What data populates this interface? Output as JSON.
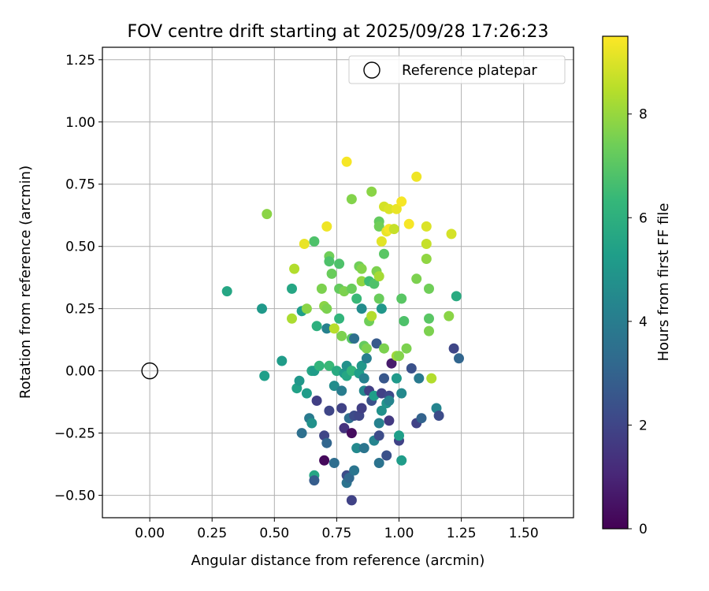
{
  "chart_data": {
    "type": "scatter",
    "title": "FOV centre drift starting at 2025/09/28 17:26:23",
    "xlabel": "Angular distance from reference (arcmin)",
    "ylabel": "Rotation from reference (arcmin)",
    "xlim": [
      -0.19,
      1.7
    ],
    "ylim": [
      -0.59,
      1.3
    ],
    "x_ticks": [
      0.0,
      0.25,
      0.5,
      0.75,
      1.0,
      1.25,
      1.5
    ],
    "x_tick_labels": [
      "0.00",
      "0.25",
      "0.50",
      "0.75",
      "1.00",
      "1.25",
      "1.50"
    ],
    "y_ticks": [
      -0.5,
      -0.25,
      0.0,
      0.25,
      0.5,
      0.75,
      1.0,
      1.25
    ],
    "y_tick_labels": [
      "−0.50",
      "−0.25",
      "0.00",
      "0.25",
      "0.50",
      "0.75",
      "1.00",
      "1.25"
    ],
    "grid": true,
    "legend": {
      "position": "top-right",
      "label": "Reference platepar"
    },
    "reference": {
      "x": 0.0,
      "y": 0.0
    },
    "colorbar": {
      "label": "Hours from first FF file",
      "min": 0,
      "max": 9.5,
      "ticks": [
        0,
        2,
        4,
        6,
        8
      ],
      "tick_labels": [
        "0",
        "2",
        "4",
        "6",
        "8"
      ],
      "colormap": [
        "#440154",
        "#482878",
        "#3e4989",
        "#31688e",
        "#26828e",
        "#1f9e89",
        "#35b779",
        "#6ece58",
        "#b5de2b",
        "#fde725"
      ]
    },
    "points": [
      {
        "x": 0.31,
        "y": 0.32,
        "h": 5.6
      },
      {
        "x": 0.45,
        "y": 0.25,
        "h": 5.1
      },
      {
        "x": 0.46,
        "y": -0.02,
        "h": 5.3
      },
      {
        "x": 0.47,
        "y": 0.63,
        "h": 7.8
      },
      {
        "x": 0.53,
        "y": 0.04,
        "h": 5.2
      },
      {
        "x": 0.57,
        "y": 0.21,
        "h": 8.3
      },
      {
        "x": 0.57,
        "y": 0.33,
        "h": 5.6
      },
      {
        "x": 0.58,
        "y": 0.41,
        "h": 8.4
      },
      {
        "x": 0.59,
        "y": -0.07,
        "h": 5.4
      },
      {
        "x": 0.6,
        "y": -0.04,
        "h": 5.0
      },
      {
        "x": 0.61,
        "y": 0.24,
        "h": 5.3
      },
      {
        "x": 0.61,
        "y": -0.25,
        "h": 3.5
      },
      {
        "x": 0.62,
        "y": 0.51,
        "h": 9.2
      },
      {
        "x": 0.63,
        "y": 0.25,
        "h": 7.8
      },
      {
        "x": 0.63,
        "y": -0.09,
        "h": 5.2
      },
      {
        "x": 0.64,
        "y": -0.19,
        "h": 3.9
      },
      {
        "x": 0.65,
        "y": -0.21,
        "h": 4.8
      },
      {
        "x": 0.65,
        "y": 0.0,
        "h": 5.6
      },
      {
        "x": 0.66,
        "y": 0.52,
        "h": 6.8
      },
      {
        "x": 0.66,
        "y": 0.0,
        "h": 5.2
      },
      {
        "x": 0.66,
        "y": -0.42,
        "h": 5.6
      },
      {
        "x": 0.66,
        "y": -0.44,
        "h": 2.8
      },
      {
        "x": 0.67,
        "y": -0.12,
        "h": 1.8
      },
      {
        "x": 0.67,
        "y": 0.18,
        "h": 6.0
      },
      {
        "x": 0.68,
        "y": 0.02,
        "h": 6.2
      },
      {
        "x": 0.69,
        "y": 0.33,
        "h": 7.6
      },
      {
        "x": 0.7,
        "y": 0.26,
        "h": 7.8
      },
      {
        "x": 0.7,
        "y": -0.26,
        "h": 2.0
      },
      {
        "x": 0.7,
        "y": -0.36,
        "h": 0.2
      },
      {
        "x": 0.71,
        "y": -0.29,
        "h": 3.1
      },
      {
        "x": 0.71,
        "y": 0.58,
        "h": 9.3
      },
      {
        "x": 0.71,
        "y": 0.17,
        "h": 4.2
      },
      {
        "x": 0.71,
        "y": 0.25,
        "h": 7.6
      },
      {
        "x": 0.72,
        "y": 0.46,
        "h": 7.4
      },
      {
        "x": 0.72,
        "y": 0.44,
        "h": 6.8
      },
      {
        "x": 0.72,
        "y": 0.02,
        "h": 6.4
      },
      {
        "x": 0.72,
        "y": -0.16,
        "h": 2.0
      },
      {
        "x": 0.73,
        "y": 0.39,
        "h": 7.3
      },
      {
        "x": 0.74,
        "y": -0.37,
        "h": 3.4
      },
      {
        "x": 0.74,
        "y": 0.17,
        "h": 8.5
      },
      {
        "x": 0.74,
        "y": -0.06,
        "h": 4.6
      },
      {
        "x": 0.75,
        "y": 0.0,
        "h": 5.8
      },
      {
        "x": 0.76,
        "y": 0.43,
        "h": 6.8
      },
      {
        "x": 0.76,
        "y": 0.33,
        "h": 7.2
      },
      {
        "x": 0.76,
        "y": 0.21,
        "h": 6.2
      },
      {
        "x": 0.77,
        "y": -0.08,
        "h": 4.0
      },
      {
        "x": 0.77,
        "y": 0.14,
        "h": 7.6
      },
      {
        "x": 0.77,
        "y": -0.15,
        "h": 1.9
      },
      {
        "x": 0.78,
        "y": -0.01,
        "h": 5.1
      },
      {
        "x": 0.78,
        "y": -0.23,
        "h": 1.4
      },
      {
        "x": 0.78,
        "y": 0.32,
        "h": 7.6
      },
      {
        "x": 0.79,
        "y": 0.84,
        "h": 9.4
      },
      {
        "x": 0.79,
        "y": 0.02,
        "h": 4.8
      },
      {
        "x": 0.79,
        "y": -0.02,
        "h": 5.6
      },
      {
        "x": 0.79,
        "y": -0.42,
        "h": 2.2
      },
      {
        "x": 0.79,
        "y": -0.45,
        "h": 3.6
      },
      {
        "x": 0.8,
        "y": -0.19,
        "h": 3.4
      },
      {
        "x": 0.8,
        "y": -0.43,
        "h": 3.2
      },
      {
        "x": 0.81,
        "y": 0.69,
        "h": 7.7
      },
      {
        "x": 0.81,
        "y": 0.33,
        "h": 7.3
      },
      {
        "x": 0.81,
        "y": 0.13,
        "h": 7.0
      },
      {
        "x": 0.81,
        "y": 0.0,
        "h": 6.2
      },
      {
        "x": 0.81,
        "y": -0.25,
        "h": 0.3
      },
      {
        "x": 0.81,
        "y": -0.52,
        "h": 1.9
      },
      {
        "x": 0.82,
        "y": -0.18,
        "h": 2.2
      },
      {
        "x": 0.82,
        "y": -0.4,
        "h": 3.7
      },
      {
        "x": 0.82,
        "y": 0.13,
        "h": 3.5
      },
      {
        "x": 0.83,
        "y": 0.29,
        "h": 6.4
      },
      {
        "x": 0.83,
        "y": -0.31,
        "h": 4.5
      },
      {
        "x": 0.84,
        "y": 0.42,
        "h": 7.4
      },
      {
        "x": 0.84,
        "y": -0.01,
        "h": 5.3
      },
      {
        "x": 0.84,
        "y": -0.18,
        "h": 2.0
      },
      {
        "x": 0.85,
        "y": 0.41,
        "h": 7.7
      },
      {
        "x": 0.85,
        "y": 0.36,
        "h": 7.9
      },
      {
        "x": 0.85,
        "y": 0.25,
        "h": 4.6
      },
      {
        "x": 0.85,
        "y": 0.02,
        "h": 5.0
      },
      {
        "x": 0.85,
        "y": -0.15,
        "h": 1.8
      },
      {
        "x": 0.86,
        "y": -0.03,
        "h": 4.2
      },
      {
        "x": 0.86,
        "y": -0.08,
        "h": 4.4
      },
      {
        "x": 0.86,
        "y": -0.31,
        "h": 3.7
      },
      {
        "x": 0.86,
        "y": 0.1,
        "h": 7.2
      },
      {
        "x": 0.87,
        "y": 0.09,
        "h": 7.6
      },
      {
        "x": 0.87,
        "y": 0.05,
        "h": 4.1
      },
      {
        "x": 0.88,
        "y": 0.36,
        "h": 6.5
      },
      {
        "x": 0.88,
        "y": 0.2,
        "h": 7.4
      },
      {
        "x": 0.88,
        "y": -0.08,
        "h": 1.8
      },
      {
        "x": 0.89,
        "y": 0.72,
        "h": 7.8
      },
      {
        "x": 0.89,
        "y": 0.22,
        "h": 8.4
      },
      {
        "x": 0.89,
        "y": -0.12,
        "h": 2.4
      },
      {
        "x": 0.9,
        "y": 0.35,
        "h": 6.8
      },
      {
        "x": 0.9,
        "y": -0.1,
        "h": 5.3
      },
      {
        "x": 0.9,
        "y": -0.28,
        "h": 4.3
      },
      {
        "x": 0.91,
        "y": 0.11,
        "h": 2.7
      },
      {
        "x": 0.91,
        "y": 0.4,
        "h": 7.6
      },
      {
        "x": 0.92,
        "y": 0.38,
        "h": 8.2
      },
      {
        "x": 0.92,
        "y": 0.29,
        "h": 7.3
      },
      {
        "x": 0.92,
        "y": -0.21,
        "h": 4.2
      },
      {
        "x": 0.92,
        "y": -0.26,
        "h": 2.2
      },
      {
        "x": 0.92,
        "y": -0.37,
        "h": 3.6
      },
      {
        "x": 0.92,
        "y": 0.6,
        "h": 7.2
      },
      {
        "x": 0.92,
        "y": 0.58,
        "h": 7.4
      },
      {
        "x": 0.93,
        "y": 0.52,
        "h": 9.1
      },
      {
        "x": 0.93,
        "y": -0.16,
        "h": 4.8
      },
      {
        "x": 0.93,
        "y": -0.09,
        "h": 1.9
      },
      {
        "x": 0.93,
        "y": 0.25,
        "h": 5.0
      },
      {
        "x": 0.94,
        "y": 0.66,
        "h": 8.9
      },
      {
        "x": 0.94,
        "y": 0.47,
        "h": 7.0
      },
      {
        "x": 0.94,
        "y": 0.09,
        "h": 7.6
      },
      {
        "x": 0.94,
        "y": -0.03,
        "h": 2.6
      },
      {
        "x": 0.95,
        "y": -0.13,
        "h": 4.9
      },
      {
        "x": 0.95,
        "y": -0.34,
        "h": 2.4
      },
      {
        "x": 0.95,
        "y": 0.56,
        "h": 9.2
      },
      {
        "x": 0.96,
        "y": 0.65,
        "h": 9.0
      },
      {
        "x": 0.96,
        "y": -0.1,
        "h": 2.1
      },
      {
        "x": 0.96,
        "y": -0.12,
        "h": 4.3
      },
      {
        "x": 0.96,
        "y": -0.2,
        "h": 1.6
      },
      {
        "x": 0.96,
        "y": 0.57,
        "h": 9.4
      },
      {
        "x": 0.97,
        "y": 0.03,
        "h": 0.7
      },
      {
        "x": 0.98,
        "y": 0.57,
        "h": 8.7
      },
      {
        "x": 0.99,
        "y": 0.06,
        "h": 8.1
      },
      {
        "x": 0.99,
        "y": 0.65,
        "h": 9.2
      },
      {
        "x": 0.99,
        "y": -0.03,
        "h": 5.1
      },
      {
        "x": 1.0,
        "y": -0.28,
        "h": 1.9
      },
      {
        "x": 1.0,
        "y": 0.06,
        "h": 7.7
      },
      {
        "x": 1.0,
        "y": -0.26,
        "h": 5.3
      },
      {
        "x": 1.01,
        "y": 0.68,
        "h": 9.4
      },
      {
        "x": 1.01,
        "y": 0.29,
        "h": 7.0
      },
      {
        "x": 1.01,
        "y": -0.09,
        "h": 4.5
      },
      {
        "x": 1.01,
        "y": -0.36,
        "h": 5.2
      },
      {
        "x": 1.02,
        "y": 0.2,
        "h": 6.8
      },
      {
        "x": 1.03,
        "y": 0.09,
        "h": 7.6
      },
      {
        "x": 1.04,
        "y": 0.59,
        "h": 9.4
      },
      {
        "x": 1.05,
        "y": 0.01,
        "h": 2.4
      },
      {
        "x": 1.07,
        "y": 0.37,
        "h": 7.6
      },
      {
        "x": 1.07,
        "y": 0.78,
        "h": 9.3
      },
      {
        "x": 1.07,
        "y": -0.21,
        "h": 1.9
      },
      {
        "x": 1.08,
        "y": -0.03,
        "h": 3.9
      },
      {
        "x": 1.09,
        "y": -0.19,
        "h": 3.0
      },
      {
        "x": 1.11,
        "y": 0.58,
        "h": 9.0
      },
      {
        "x": 1.11,
        "y": 0.51,
        "h": 8.7
      },
      {
        "x": 1.11,
        "y": 0.45,
        "h": 7.9
      },
      {
        "x": 1.12,
        "y": 0.21,
        "h": 7.0
      },
      {
        "x": 1.12,
        "y": 0.16,
        "h": 7.6
      },
      {
        "x": 1.12,
        "y": 0.33,
        "h": 7.4
      },
      {
        "x": 1.13,
        "y": -0.03,
        "h": 8.4
      },
      {
        "x": 1.15,
        "y": -0.15,
        "h": 4.3
      },
      {
        "x": 1.16,
        "y": -0.18,
        "h": 2.2
      },
      {
        "x": 1.2,
        "y": 0.22,
        "h": 7.8
      },
      {
        "x": 1.21,
        "y": 0.55,
        "h": 8.9
      },
      {
        "x": 1.22,
        "y": 0.09,
        "h": 2.0
      },
      {
        "x": 1.23,
        "y": 0.3,
        "h": 5.8
      },
      {
        "x": 1.24,
        "y": 0.05,
        "h": 3.1
      }
    ]
  }
}
